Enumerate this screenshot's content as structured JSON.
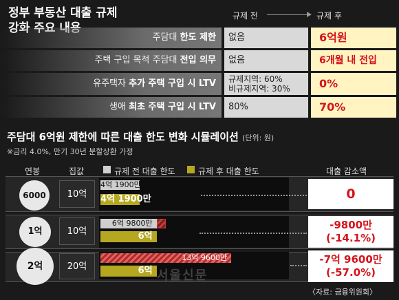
{
  "header": {
    "title_line1": "정부 부동산 대출 규제",
    "title_line2": "강화 주요 내용",
    "col_before": "규제 전",
    "col_after": "규제 후"
  },
  "policies": [
    {
      "label_pre": "주담대 ",
      "label_bold": "한도 제한",
      "before": "없음",
      "after": "6억원"
    },
    {
      "label_pre": "주택 구입 목적 주담대 ",
      "label_bold": "전입 의무",
      "before": "없음",
      "after": "6개월 내 전입"
    },
    {
      "label_pre": "유주택자 ",
      "label_bold": "추가 주택 구입 시 LTV",
      "before_line1": "규제지역: 60%",
      "before_line2": "비규제지역: 30%",
      "after": "0%"
    },
    {
      "label_pre": "생애 ",
      "label_bold": "최초 주택 구입 시 LTV",
      "before": "80%",
      "after": "70%"
    }
  ],
  "simulation": {
    "title": "주담대 6억원 제한에 따른 대출 한도 변화 시뮬레이션",
    "unit": "(단위: 원)",
    "note": "※금리 4.0%, 만기 30년 분할상환 가정",
    "col_income": "연봉",
    "col_house": "집값",
    "legend_before": "규제 전 대출 한도",
    "legend_after": "규제 후 대출 한도",
    "col_reduction": "대출 감소액"
  },
  "chart_data": {
    "type": "bar",
    "title": "주담대 6억원 제한에 따른 대출 한도 변화 시뮬레이션",
    "unit": "원",
    "categories": [
      "6000만",
      "1억",
      "2억"
    ],
    "house_prices": [
      "10억",
      "10억",
      "20억"
    ],
    "series": [
      {
        "name": "규제 전 대출 한도",
        "values": [
          419000000,
          698000000,
          1396000000
        ],
        "labels": [
          "4억 1900만",
          "6억 9800만",
          "13억 9600만"
        ],
        "color": "#cfcfcf"
      },
      {
        "name": "규제 후 대출 한도",
        "values": [
          419000000,
          600000000,
          600000000
        ],
        "labels": [
          "4억 1900만",
          "6억",
          "6억"
        ],
        "color": "#b5a820"
      }
    ],
    "reductions": [
      {
        "amount": "0",
        "pct": ""
      },
      {
        "amount": "-9800만",
        "pct": "(-14.1%)"
      },
      {
        "amount": "-7억 9600만",
        "pct": "(-57.0%)"
      }
    ]
  },
  "watermark": "서울신문",
  "source": "〈자료: 금융위원회〉",
  "colors": {
    "accent_red": "#d4141b",
    "olive": "#b5a820",
    "after_bg": "#fff4c2"
  }
}
